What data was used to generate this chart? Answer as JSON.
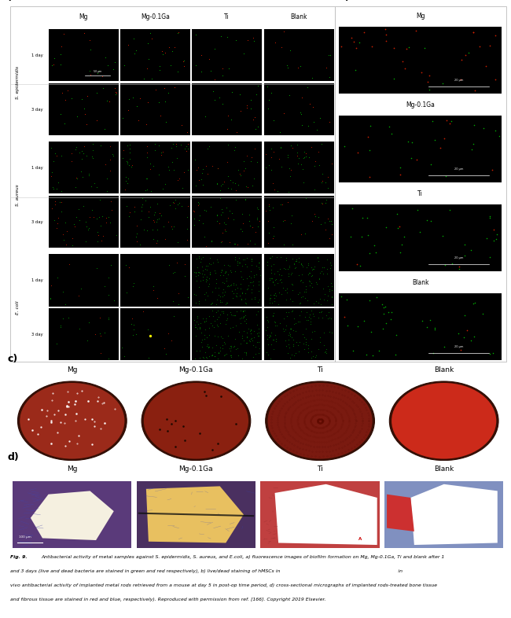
{
  "fig_width": 6.5,
  "fig_height": 7.86,
  "dpi": 100,
  "bg_color": "#ffffff",
  "panel_a": {
    "label": "a)",
    "col_headers": [
      "Mg",
      "Mg-0.1Ga",
      "Ti",
      "Blank"
    ],
    "group_names": [
      "S. epidermidis",
      "S. aureus",
      "E. coli"
    ],
    "day_labels": [
      "1 day",
      "3 day",
      "1 day",
      "3 day",
      "1 day",
      "3 day"
    ]
  },
  "panel_b": {
    "label": "b)",
    "items": [
      "Mg",
      "Mg-0.1Ga",
      "Ti",
      "Blank"
    ],
    "scale_text": "20 μm"
  },
  "panel_c": {
    "label": "c)",
    "items": [
      "Mg",
      "Mg-0.1Ga",
      "Ti",
      "Blank"
    ],
    "plate_colors": [
      "#9b2a1a",
      "#8a2010",
      "#7a1a10",
      "#cc2a1a"
    ]
  },
  "panel_d": {
    "label": "d)",
    "items": [
      "Mg",
      "Mg-0.1Ga",
      "Ti",
      "Blank"
    ]
  },
  "caption_line1": "Fig. 9.  Antibacterial activity of metal samples against S. epidermidis, S. aureus, and E.coli, a) fluorescence images of biofilm formation on Mg, Mg-0.1Ga, Ti and blank after 1",
  "caption_line2": "and 3 days (live and dead bacteria are stained in green and red respectively), b) live/dead staining of hMSCs in                                                                           in",
  "caption_line3": "vivo antibacterial activity of implanted metal rods retrieved from a mouse at day 5 in post-op time period, d) cross-sectional micrographs of implanted rods-treated bone tissue",
  "caption_line4": "and fibrous tissue are stained in red and blue, respectively). Reproduced with permission from ref. [166]. Copyright 2019 Elsevier."
}
